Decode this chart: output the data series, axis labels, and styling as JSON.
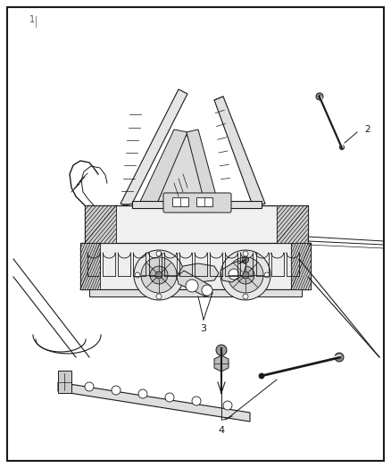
{
  "bg_color": "#ffffff",
  "border_color": "#1a1a1a",
  "line_color": "#1a1a1a",
  "gray_light": "#e8e8e8",
  "gray_mid": "#cccccc",
  "gray_dark": "#999999",
  "figsize": [
    4.38,
    5.33
  ],
  "dpi": 100
}
